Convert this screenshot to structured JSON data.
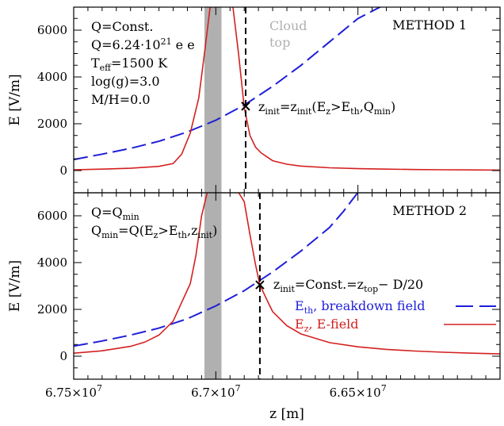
{
  "chart_data": [
    {
      "type": "line",
      "panel": "top",
      "title": "METHOD 1",
      "xlabel": "",
      "ylabel": "E [V/m]",
      "xlim": [
        67500000,
        66000000
      ],
      "ylim": [
        -800,
        7000
      ],
      "yticks": [
        0,
        2000,
        4000,
        6000
      ],
      "cloud_band": [
        67040000,
        66980000
      ],
      "cloud_label": [
        "Cloud",
        "top"
      ],
      "vline_x": 66895000,
      "marker": {
        "x": 66895000,
        "y": 2750
      },
      "marker_label": {
        "main": "z",
        "sub": "init",
        "rest": "=z",
        "sub2": "init",
        "rest2": "(E",
        "sub3": "z",
        "rest3": ">E",
        "sub4": "th",
        "rest4": ",Q",
        "sub5": "min",
        "rest5": ")"
      },
      "params": [
        {
          "main": "Q=Const.",
          "sup": "",
          "rest": ""
        },
        {
          "main": "Q=6.24·10",
          "sup": "21",
          "rest": " e"
        },
        {
          "main": "T",
          "sub": "eff",
          "rest": "=1500 K"
        },
        {
          "main": "log(g)=3.0",
          "sup": "",
          "rest": ""
        },
        {
          "main": "M/H=0.0",
          "sup": "",
          "rest": ""
        }
      ],
      "series": [
        {
          "name": "E_th, breakdown field",
          "color": "#1f1fd8",
          "style": "dashed",
          "x": [
            67500000,
            67400000,
            67300000,
            67200000,
            67100000,
            67000000,
            66900000,
            66800000,
            66700000,
            66600000,
            66500000,
            66420000
          ],
          "y": [
            470,
            700,
            950,
            1250,
            1650,
            2150,
            2800,
            3600,
            4500,
            5500,
            6500,
            7000
          ]
        },
        {
          "name": "E_z, E-field",
          "color": "#d42020",
          "style": "solid",
          "x": [
            67500000,
            67400000,
            67300000,
            67200000,
            67150000,
            67120000,
            67090000,
            67060000,
            67040000,
            67020000,
            67000000,
            66980000,
            66960000,
            66940000,
            66920000,
            66900000,
            66880000,
            66860000,
            66840000,
            66800000,
            66750000,
            66700000,
            66600000,
            66500000,
            66400000,
            66300000,
            66200000,
            66100000,
            66000000
          ],
          "y": [
            30,
            60,
            100,
            180,
            300,
            700,
            1600,
            3100,
            5000,
            7000,
            7000,
            7000,
            7000,
            7000,
            5000,
            2700,
            1500,
            1000,
            750,
            420,
            270,
            190,
            120,
            80,
            60,
            45,
            35,
            28,
            20
          ]
        }
      ]
    },
    {
      "type": "line",
      "panel": "bottom",
      "title": "METHOD 2",
      "xlabel": "z [m]",
      "ylabel": "E [V/m]",
      "xlim": [
        67500000,
        66000000
      ],
      "ylim": [
        -1000,
        7000
      ],
      "xticks": [
        67500000,
        67000000,
        66500000
      ],
      "xtick_labels": [
        {
          "main": "6.75×10",
          "sup": "7"
        },
        {
          "main": "6.7×10",
          "sup": "7"
        },
        {
          "main": "6.65×10",
          "sup": "7"
        }
      ],
      "yticks": [
        0,
        2000,
        4000,
        6000
      ],
      "cloud_band": [
        67040000,
        66980000
      ],
      "vline_x": 66845000,
      "marker": {
        "x": 66845000,
        "y": 3050
      },
      "marker_label": {
        "main": "z",
        "sub": "init",
        "rest": "=Const.=z",
        "sub2": "top",
        "rest2": "− D/20"
      },
      "params": [
        {
          "main": "Q=Q",
          "sub": "min",
          "rest": ""
        },
        {
          "main": "Q",
          "sub": "min",
          "rest": "=Q(E",
          "sub2": "z",
          "rest2": ">E",
          "sub3": "th",
          "rest3": ",z",
          "sub4": "init",
          "rest4": ")"
        }
      ],
      "legend": [
        {
          "main": "E",
          "sub": "th",
          "rest": ", breakdown field",
          "color": "#1f1fd8",
          "style": "dashed"
        },
        {
          "main": "E",
          "sub": "z",
          "rest": ", E-field",
          "color": "#d42020",
          "style": "solid"
        }
      ],
      "series": [
        {
          "name": "E_th, breakdown field",
          "color": "#1f1fd8",
          "style": "dashed",
          "x": [
            67500000,
            67400000,
            67300000,
            67200000,
            67100000,
            67000000,
            66900000,
            66800000,
            66700000,
            66600000,
            66550000,
            66500000
          ],
          "y": [
            430,
            650,
            900,
            1200,
            1600,
            2150,
            2800,
            3600,
            4500,
            5500,
            6200,
            7000
          ]
        },
        {
          "name": "E_z, E-field",
          "color": "#d42020",
          "style": "solid",
          "x": [
            67500000,
            67400000,
            67300000,
            67250000,
            67200000,
            67150000,
            67120000,
            67090000,
            67070000,
            67050000,
            67030000,
            67010000,
            67000000,
            66980000,
            66960000,
            66940000,
            66920000,
            66900000,
            66880000,
            66860000,
            66845000,
            66820000,
            66800000,
            66750000,
            66700000,
            66600000,
            66500000,
            66400000,
            66300000,
            66200000,
            66100000,
            66000000
          ],
          "y": [
            130,
            230,
            420,
            600,
            900,
            1500,
            2300,
            3100,
            4300,
            6000,
            7000,
            7000,
            7000,
            7000,
            7000,
            7000,
            7000,
            6600,
            5200,
            3900,
            3050,
            2400,
            1900,
            1300,
            950,
            580,
            400,
            290,
            220,
            170,
            130,
            100
          ]
        }
      ]
    }
  ]
}
